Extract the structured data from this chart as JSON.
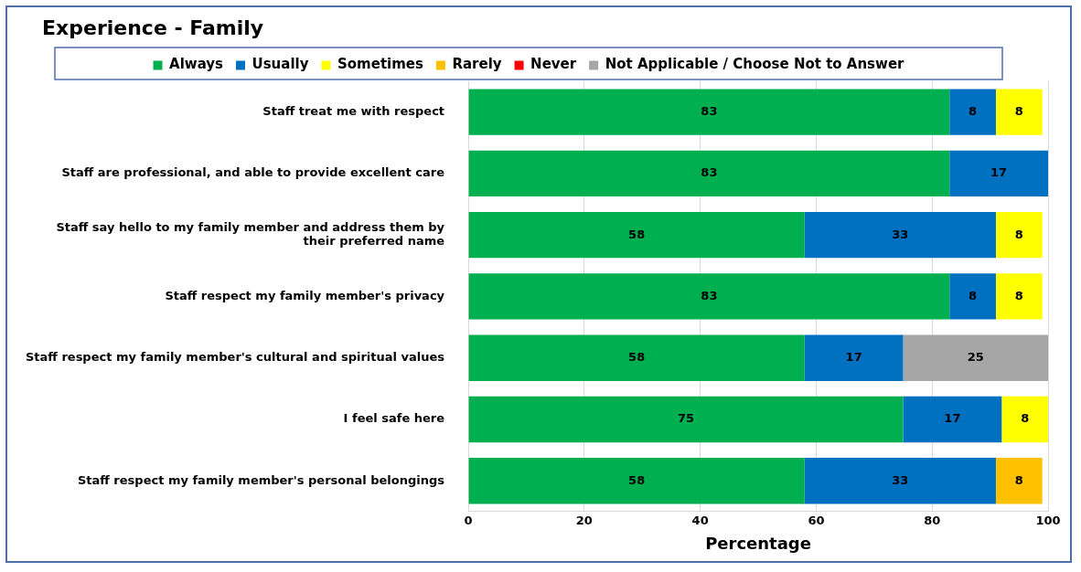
{
  "chart_data": {
    "type": "bar",
    "orientation": "horizontal",
    "stacked": true,
    "title": "Experience - Family",
    "xlabel": "Percentage",
    "categories": [
      "Staff treat me with respect",
      "Staff are professional, and able to provide excellent care",
      "Staff say hello to my family member and address them by their preferred name",
      "Staff respect my family member's privacy",
      "Staff respect my family member's cultural and spiritual values",
      "I feel safe here",
      "Staff respect my family member's personal belongings"
    ],
    "series": [
      {
        "name": "Always",
        "color": "#00b050",
        "values": [
          83,
          83,
          58,
          83,
          58,
          75,
          58
        ]
      },
      {
        "name": "Usually",
        "color": "#0070c0",
        "values": [
          8,
          17,
          33,
          8,
          17,
          17,
          33
        ]
      },
      {
        "name": "Sometimes",
        "color": "#ffff00",
        "values": [
          8,
          null,
          8,
          8,
          null,
          8,
          null
        ]
      },
      {
        "name": "Rarely",
        "color": "#ffc000",
        "values": [
          null,
          null,
          null,
          null,
          null,
          null,
          8
        ]
      },
      {
        "name": "Never",
        "color": "#ff0000",
        "values": [
          null,
          null,
          null,
          null,
          null,
          null,
          null
        ]
      },
      {
        "name": "Not Applicable / Choose Not to Answer",
        "color": "#a6a6a6",
        "values": [
          null,
          null,
          null,
          null,
          25,
          null,
          null
        ]
      }
    ],
    "xlim": [
      0,
      100
    ],
    "xticks": [
      0,
      20,
      40,
      60,
      80,
      100
    ],
    "grid": "x",
    "legend": "top",
    "data_labels": true
  }
}
